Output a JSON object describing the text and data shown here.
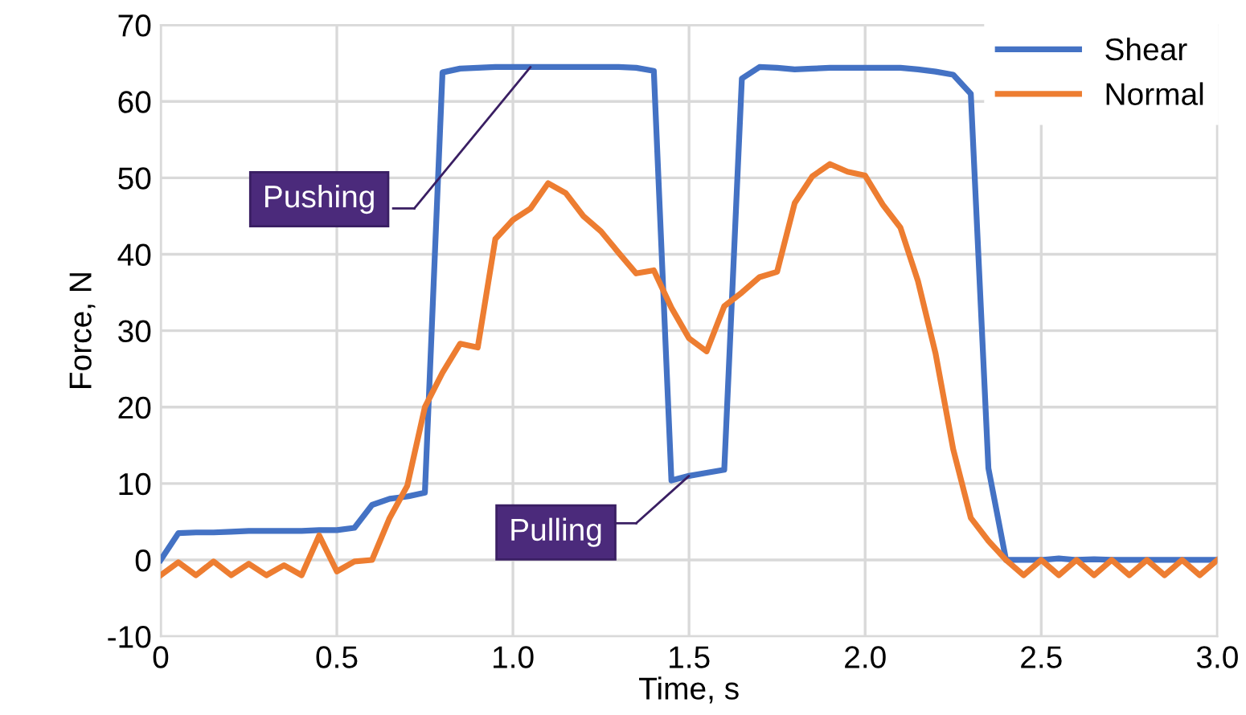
{
  "chart_data": {
    "type": "line",
    "xlabel": "Time, s",
    "ylabel": "Force, N",
    "x": [
      0,
      0.05,
      0.1,
      0.15,
      0.2,
      0.25,
      0.3,
      0.35,
      0.4,
      0.45,
      0.5,
      0.55,
      0.6,
      0.65,
      0.7,
      0.75,
      0.8,
      0.85,
      0.9,
      0.95,
      1.0,
      1.05,
      1.1,
      1.15,
      1.2,
      1.25,
      1.3,
      1.35,
      1.4,
      1.45,
      1.5,
      1.55,
      1.6,
      1.65,
      1.7,
      1.75,
      1.8,
      1.85,
      1.9,
      1.95,
      2.0,
      2.05,
      2.1,
      2.15,
      2.2,
      2.25,
      2.3,
      2.35,
      2.4,
      2.45,
      2.5,
      2.55,
      2.6,
      2.65,
      2.7,
      2.75,
      2.8,
      2.85,
      2.9,
      2.95,
      3.0
    ],
    "series": [
      {
        "name": "Shear",
        "color": "#4472c4",
        "values": [
          0,
          3.5,
          3.6,
          3.6,
          3.7,
          3.8,
          3.8,
          3.8,
          3.8,
          3.9,
          3.9,
          4.2,
          7.2,
          8.0,
          8.3,
          8.8,
          63.8,
          64.3,
          64.4,
          64.5,
          64.5,
          64.5,
          64.5,
          64.5,
          64.5,
          64.5,
          64.5,
          64.4,
          64.0,
          10.4,
          11.0,
          11.4,
          11.8,
          63.0,
          64.5,
          64.4,
          64.2,
          64.3,
          64.4,
          64.4,
          64.4,
          64.4,
          64.4,
          64.2,
          63.9,
          63.5,
          61.0,
          12.0,
          0,
          0,
          0,
          0.2,
          0,
          0.1,
          0,
          0,
          0,
          0,
          0,
          0,
          0
        ]
      },
      {
        "name": "Normal",
        "color": "#ed7d31",
        "values": [
          -2,
          -0.3,
          -2,
          -0.2,
          -2,
          -0.5,
          -2,
          -0.7,
          -2,
          3.2,
          -1.5,
          -0.2,
          0,
          5.5,
          9.7,
          20,
          24.5,
          28.3,
          27.8,
          42,
          44.5,
          46,
          49.3,
          48,
          45,
          43,
          40.2,
          37.5,
          37.9,
          33,
          29,
          27.3,
          33.2,
          35,
          37,
          37.7,
          46.7,
          50.2,
          51.8,
          50.8,
          50.3,
          46.5,
          43.5,
          36.5,
          27,
          14.5,
          5.5,
          2.5,
          0,
          -2,
          0,
          -2,
          0,
          -2,
          0,
          -2,
          0,
          -2,
          0,
          -2,
          0
        ]
      }
    ],
    "xlim": [
      0,
      3.0
    ],
    "xticks": [
      {
        "value": 0,
        "label": "0"
      },
      {
        "value": 0.5,
        "label": "0.5"
      },
      {
        "value": 1.0,
        "label": "1.0"
      },
      {
        "value": 1.5,
        "label": "1.5"
      },
      {
        "value": 2.0,
        "label": "2.0"
      },
      {
        "value": 2.5,
        "label": "2.5"
      },
      {
        "value": 3.0,
        "label": "3.0"
      }
    ],
    "ylim": [
      -10,
      70
    ],
    "yticks": [
      -10,
      0,
      10,
      20,
      30,
      40,
      50,
      60,
      70
    ],
    "grid": true,
    "legend": "top right",
    "marker": "none",
    "line_style": "solid",
    "annotations": [
      {
        "text": "Pushing",
        "x": 1.05,
        "y": 64.5
      },
      {
        "text": "Pulling",
        "x": 1.5,
        "y": 11.0
      }
    ]
  }
}
